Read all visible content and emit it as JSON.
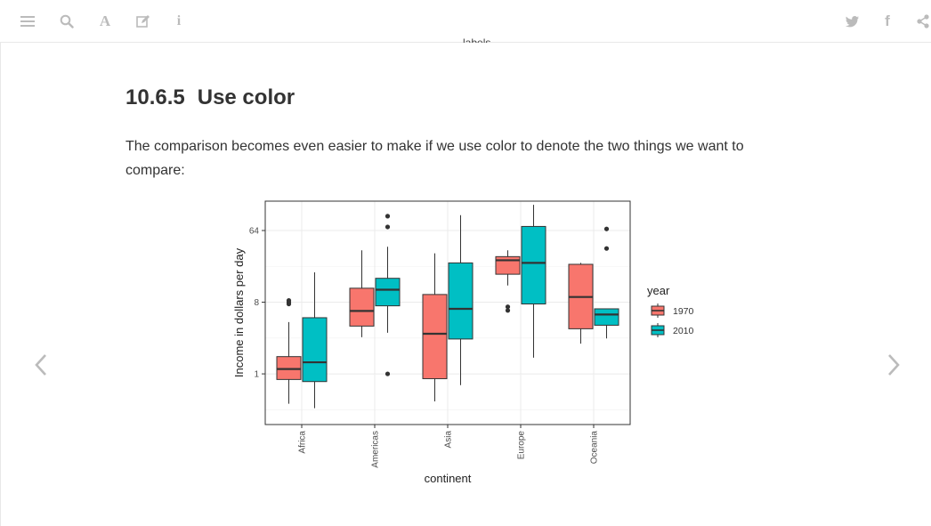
{
  "toolbar": {
    "left_icons": [
      "menu-icon",
      "search-icon",
      "font-icon",
      "edit-icon",
      "info-icon"
    ],
    "right_icons": [
      "twitter-icon",
      "facebook-icon",
      "share-icon"
    ],
    "font_glyph": "A",
    "info_glyph": "i",
    "facebook_glyph": "f",
    "icon_color": "#bbbbbb"
  },
  "content": {
    "cutoff_text": "labels",
    "section_number": "10.6.5",
    "section_title": "Use color",
    "paragraph": "The comparison becomes even easier to make if we use color to denote the two things we want to compare:"
  },
  "nav": {
    "prev_icon": "chevron-left-icon",
    "next_icon": "chevron-right-icon"
  },
  "chart_data": {
    "type": "boxplot",
    "xlabel": "continent",
    "ylabel": "Income in dollars per day",
    "y_scale": "log2",
    "ylim": [
      0.23,
      150
    ],
    "yticks": [
      1,
      8,
      64
    ],
    "ytick_labels": [
      "1",
      "8",
      "64"
    ],
    "categories": [
      "Africa",
      "Americas",
      "Asia",
      "Europe",
      "Oceania"
    ],
    "legend": {
      "title": "year",
      "position": "right",
      "entries": [
        "1970",
        "2010"
      ]
    },
    "colors": {
      "1970": "#F8766D",
      "2010": "#00BFC4"
    },
    "grid": true,
    "series": [
      {
        "name": "1970",
        "boxes": [
          {
            "category": "Africa",
            "whisker_low": 0.42,
            "q1": 0.85,
            "median": 1.15,
            "q3": 1.65,
            "whisker_high": 4.5,
            "outliers": [
              7.6,
              8.0,
              8.4
            ]
          },
          {
            "category": "Americas",
            "whisker_low": 2.9,
            "q1": 4.0,
            "median": 6.2,
            "q3": 12.0,
            "whisker_high": 36.0,
            "outliers": []
          },
          {
            "category": "Asia",
            "whisker_low": 0.45,
            "q1": 0.87,
            "median": 3.2,
            "q3": 10.0,
            "whisker_high": 33.0,
            "outliers": []
          },
          {
            "category": "Europe",
            "whisker_low": 13.0,
            "q1": 18.0,
            "median": 27.0,
            "q3": 30.0,
            "whisker_high": 36.0,
            "outliers": [
              6.3,
              7.0
            ]
          },
          {
            "category": "Oceania",
            "whisker_low": 2.4,
            "q1": 3.7,
            "median": 9.3,
            "q3": 24.0,
            "whisker_high": 25.0,
            "outliers": []
          }
        ]
      },
      {
        "name": "2010",
        "boxes": [
          {
            "category": "Africa",
            "whisker_low": 0.37,
            "q1": 0.8,
            "median": 1.4,
            "q3": 5.1,
            "whisker_high": 19.0,
            "outliers": []
          },
          {
            "category": "Americas",
            "whisker_low": 3.3,
            "q1": 7.2,
            "median": 11.5,
            "q3": 16.0,
            "whisker_high": 40.0,
            "outliers": [
              1.0,
              71.0,
              97.0
            ]
          },
          {
            "category": "Asia",
            "whisker_low": 0.72,
            "q1": 2.75,
            "median": 6.6,
            "q3": 25.0,
            "whisker_high": 100.0,
            "outliers": []
          },
          {
            "category": "Europe",
            "whisker_low": 1.6,
            "q1": 7.6,
            "median": 25.0,
            "q3": 72.0,
            "whisker_high": 135.0,
            "outliers": []
          },
          {
            "category": "Oceania",
            "whisker_low": 2.8,
            "q1": 4.1,
            "median": 5.6,
            "q3": 6.6,
            "whisker_high": 6.6,
            "outliers": [
              38.0,
              67.0
            ]
          }
        ]
      }
    ]
  }
}
